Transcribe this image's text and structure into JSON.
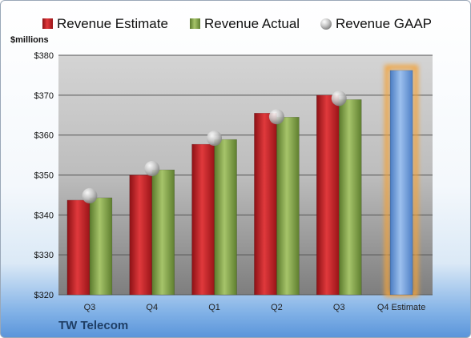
{
  "company": "TW Telecom",
  "chart_data": {
    "type": "bar",
    "title": "",
    "xlabel": "",
    "ylabel": "$millions",
    "ylim": [
      320,
      380
    ],
    "yticks": [
      320,
      330,
      340,
      350,
      360,
      370,
      380
    ],
    "ytick_format": "$",
    "categories": [
      "Q3",
      "Q4",
      "Q1",
      "Q2",
      "Q3",
      "Q4 Estimate"
    ],
    "series": [
      {
        "name": "Revenue Estimate",
        "color": "#c0262b",
        "values": [
          343.7,
          350.0,
          357.7,
          365.5,
          370.0,
          null
        ]
      },
      {
        "name": "Revenue Actual",
        "color": "#7f9e45",
        "values": [
          344.3,
          351.3,
          358.9,
          364.5,
          368.9,
          null
        ]
      },
      {
        "name": "Revenue GAAP",
        "color": "#b8b8b8",
        "marker": "sphere",
        "values": [
          344.8,
          351.6,
          359.2,
          364.6,
          369.2,
          null
        ]
      }
    ],
    "forecast": {
      "category": "Q4 Estimate",
      "value": 376.2,
      "color": "#6f9fdc",
      "glow": "#f2a33a"
    },
    "grid": true,
    "legend_position": "top"
  }
}
